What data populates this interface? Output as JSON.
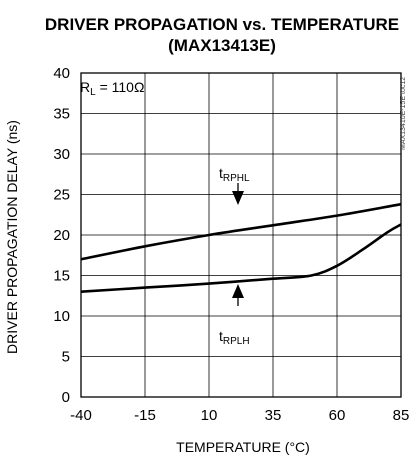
{
  "chart_data": {
    "type": "line",
    "title_line1": "DRIVER PROPAGATION vs. TEMPERATURE",
    "title_line2": "(MAX13413E)",
    "xlabel": "TEMPERATURE (°C)",
    "ylabel": "DRIVER PROPAGATION DELAY (ns)",
    "xlim": [
      -40,
      85
    ],
    "ylim": [
      0,
      40
    ],
    "x_ticks": [
      -40,
      -15,
      10,
      35,
      60,
      85
    ],
    "y_ticks": [
      0,
      5,
      10,
      15,
      20,
      25,
      30,
      35,
      40
    ],
    "grid": true,
    "condition": {
      "prefix": "R",
      "subscript": "L",
      "value": " = 110Ω"
    },
    "side_label": "MAX13410E-15E toc12",
    "series": [
      {
        "name_main": "t",
        "name_sub": "RPHL",
        "x": [
          -40,
          -15,
          10,
          35,
          60,
          85
        ],
        "y": [
          17.0,
          18.6,
          20.0,
          21.2,
          22.4,
          23.8
        ]
      },
      {
        "name_main": "t",
        "name_sub": "RPLH",
        "x": [
          -40,
          -15,
          10,
          35,
          50,
          60,
          70,
          80,
          85
        ],
        "y": [
          13.0,
          13.5,
          14.0,
          14.6,
          15.0,
          16.2,
          18.2,
          20.4,
          21.3
        ]
      }
    ]
  }
}
